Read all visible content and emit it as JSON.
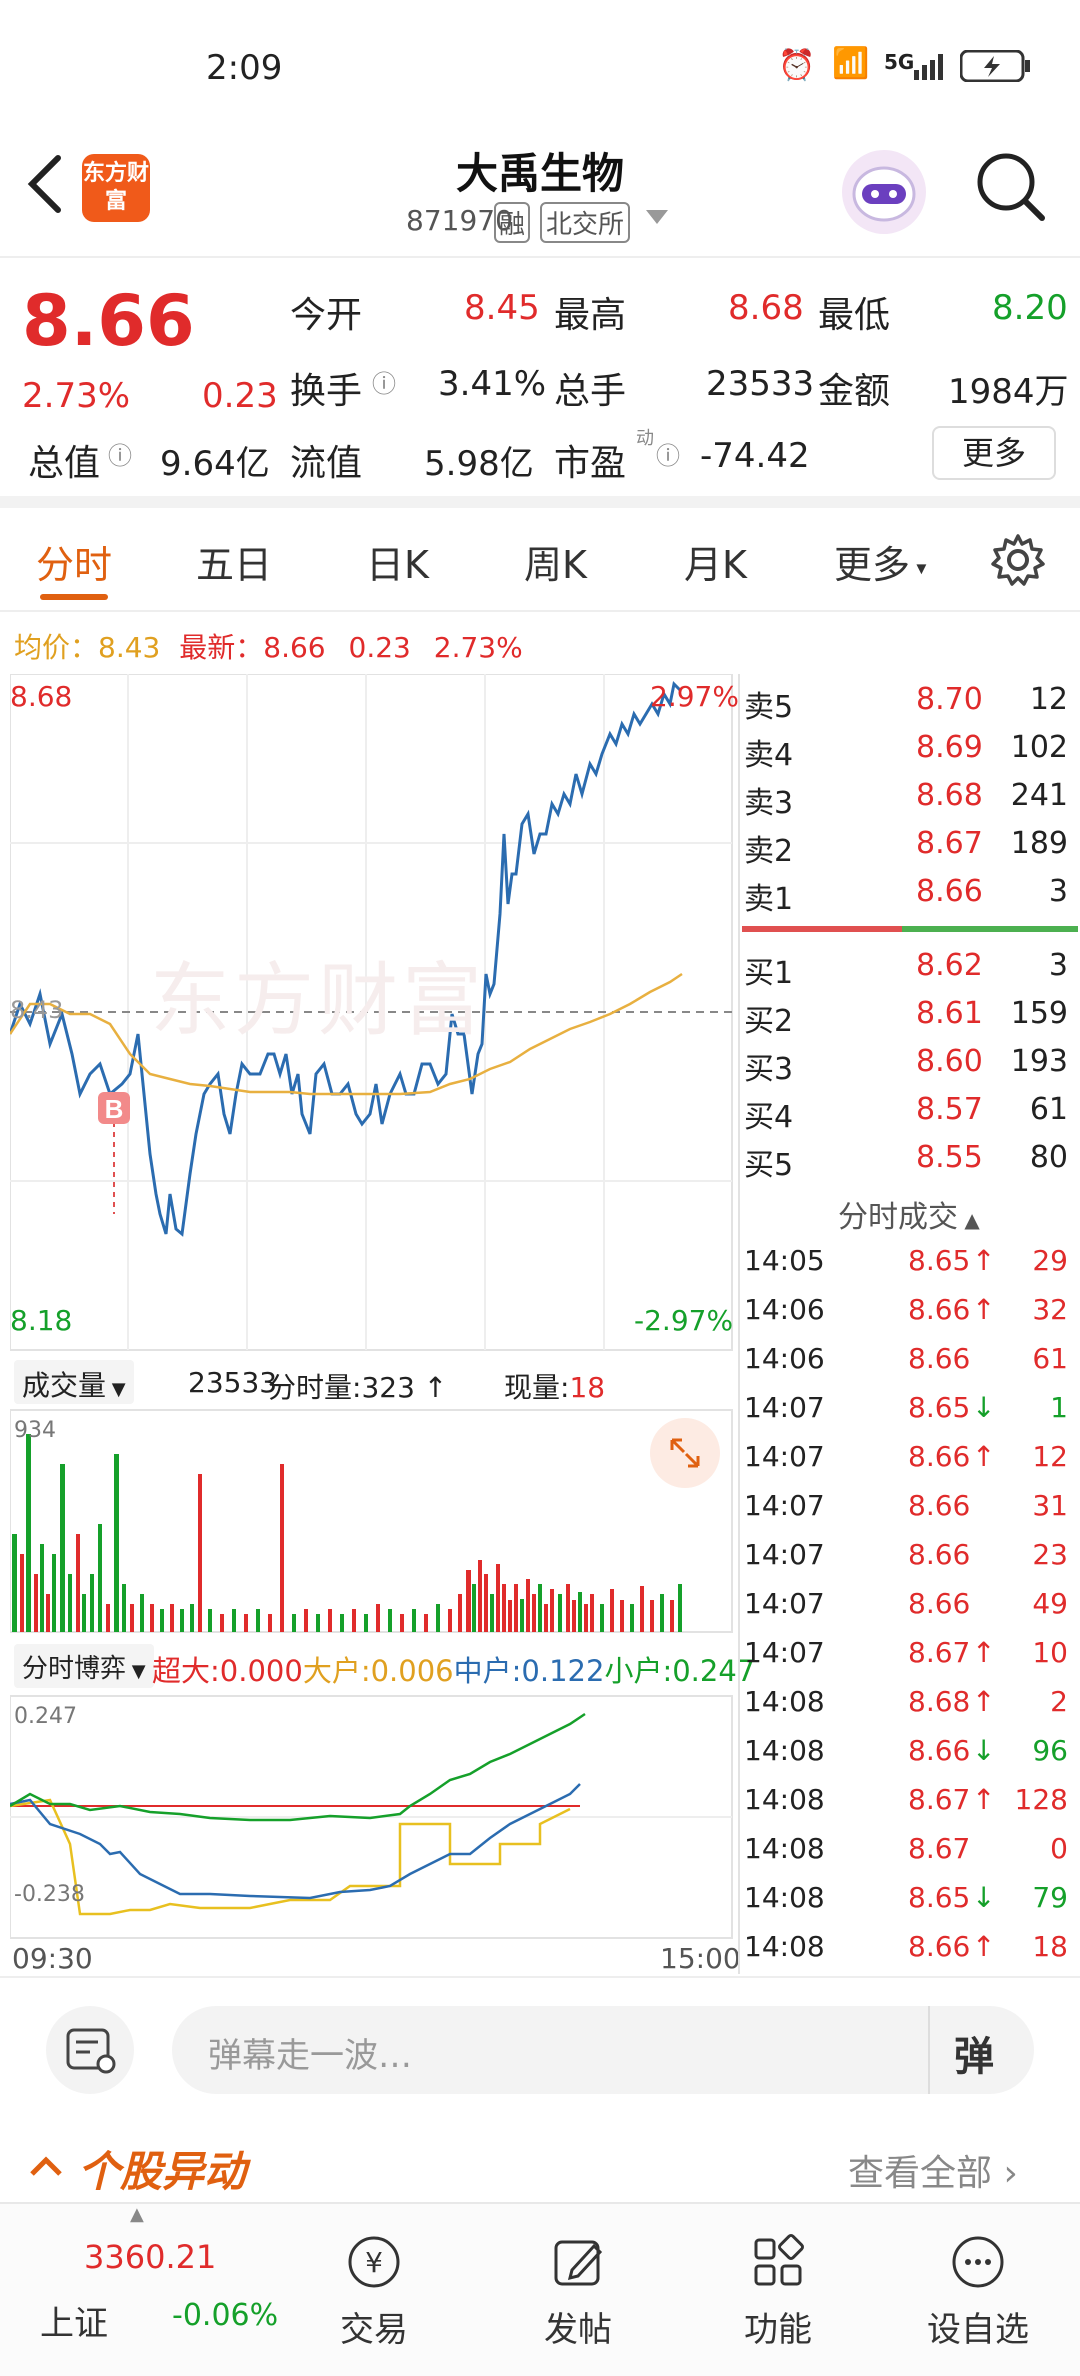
{
  "status": {
    "time": "2:09",
    "network": "5G"
  },
  "header": {
    "title": "大禹生物",
    "code": "871970",
    "tag_margin": "融",
    "exchange": "北交所",
    "logo_text": "东方财富"
  },
  "quote": {
    "price": "8.66",
    "change_pct": "2.73%",
    "change": "0.23",
    "open_label": "今开",
    "open": "8.45",
    "high_label": "最高",
    "high": "8.68",
    "low_label": "最低",
    "low": "8.20",
    "turnover_label": "换手",
    "turnover": "3.41%",
    "volume_label": "总手",
    "volume": "23533",
    "amount_label": "金额",
    "amount": "1984万",
    "mcap_label": "总值",
    "mcap": "9.64亿",
    "float_label": "流值",
    "float": "5.98亿",
    "pe_label": "市盈",
    "pe_sup": "动",
    "pe": "-74.42",
    "more_btn": "更多"
  },
  "tabs": [
    "分时",
    "五日",
    "日K",
    "周K",
    "月K",
    "更多"
  ],
  "avg_line": {
    "avg_label": "均价：",
    "avg": "8.43",
    "latest_label": "最新：",
    "latest": "8.66",
    "chg": "0.23",
    "pct": "2.73%"
  },
  "chart": {
    "top_price": "8.68",
    "top_pct": "2.97%",
    "bottom_price": "8.18",
    "bottom_pct": "-2.97%",
    "mid_price": "8.43",
    "buy_marker": "B",
    "watermark": "东方财富",
    "time_start": "09:30",
    "time_end": "15:00",
    "vol_label": "成交量",
    "vol_total": "23533",
    "vol_minute_label": "分时量:",
    "vol_minute": "323",
    "vol_now_label": "现量:",
    "vol_now": "18",
    "vol_max": "934",
    "fund_label": "分时博弈",
    "fund_top": "0.247",
    "fund_bottom": "-0.238",
    "super_label": "超大:",
    "super": "0.000",
    "big_label": "大户",
    "big": ":0.006",
    "mid_label": "中户",
    "mid": ":0.122",
    "small_label": "小户",
    "small": ":0.247"
  },
  "orderbook": {
    "asks": [
      {
        "label": "卖5",
        "price": "8.70",
        "vol": "12"
      },
      {
        "label": "卖4",
        "price": "8.69",
        "vol": "102"
      },
      {
        "label": "卖3",
        "price": "8.68",
        "vol": "241"
      },
      {
        "label": "卖2",
        "price": "8.67",
        "vol": "189"
      },
      {
        "label": "卖1",
        "price": "8.66",
        "vol": "3"
      }
    ],
    "bids": [
      {
        "label": "买1",
        "price": "8.62",
        "vol": "3"
      },
      {
        "label": "买2",
        "price": "8.61",
        "vol": "159"
      },
      {
        "label": "买3",
        "price": "8.60",
        "vol": "193"
      },
      {
        "label": "买4",
        "price": "8.57",
        "vol": "61"
      },
      {
        "label": "买5",
        "price": "8.55",
        "vol": "80"
      }
    ]
  },
  "ticks_title": "分时成交",
  "ticks": [
    {
      "t": "14:05",
      "p": "8.65",
      "d": "↑",
      "v": "29"
    },
    {
      "t": "14:06",
      "p": "8.66",
      "d": "↑",
      "v": "32"
    },
    {
      "t": "14:06",
      "p": "8.66",
      "d": "",
      "v": "61"
    },
    {
      "t": "14:07",
      "p": "8.65",
      "d": "↓",
      "v": "1"
    },
    {
      "t": "14:07",
      "p": "8.66",
      "d": "↑",
      "v": "12"
    },
    {
      "t": "14:07",
      "p": "8.66",
      "d": "",
      "v": "31"
    },
    {
      "t": "14:07",
      "p": "8.66",
      "d": "",
      "v": "23"
    },
    {
      "t": "14:07",
      "p": "8.66",
      "d": "",
      "v": "49"
    },
    {
      "t": "14:07",
      "p": "8.67",
      "d": "↑",
      "v": "10"
    },
    {
      "t": "14:08",
      "p": "8.68",
      "d": "↑",
      "v": "2"
    },
    {
      "t": "14:08",
      "p": "8.66",
      "d": "↓",
      "v": "96"
    },
    {
      "t": "14:08",
      "p": "8.67",
      "d": "↑",
      "v": "128"
    },
    {
      "t": "14:08",
      "p": "8.67",
      "d": "",
      "v": "0"
    },
    {
      "t": "14:08",
      "p": "8.65",
      "d": "↓",
      "v": "79"
    },
    {
      "t": "14:08",
      "p": "8.66",
      "d": "↑",
      "v": "18"
    }
  ],
  "danmu": {
    "placeholder": "弹幕走一波…",
    "btn": "弹"
  },
  "movement": {
    "title": "个股异动",
    "view_all": "查看全部"
  },
  "bottom_nav": {
    "index_value": "3360.21",
    "index_name": "上证",
    "index_chg": "-0.06%",
    "items": [
      "交易",
      "发帖",
      "功能",
      "设自选"
    ]
  }
}
